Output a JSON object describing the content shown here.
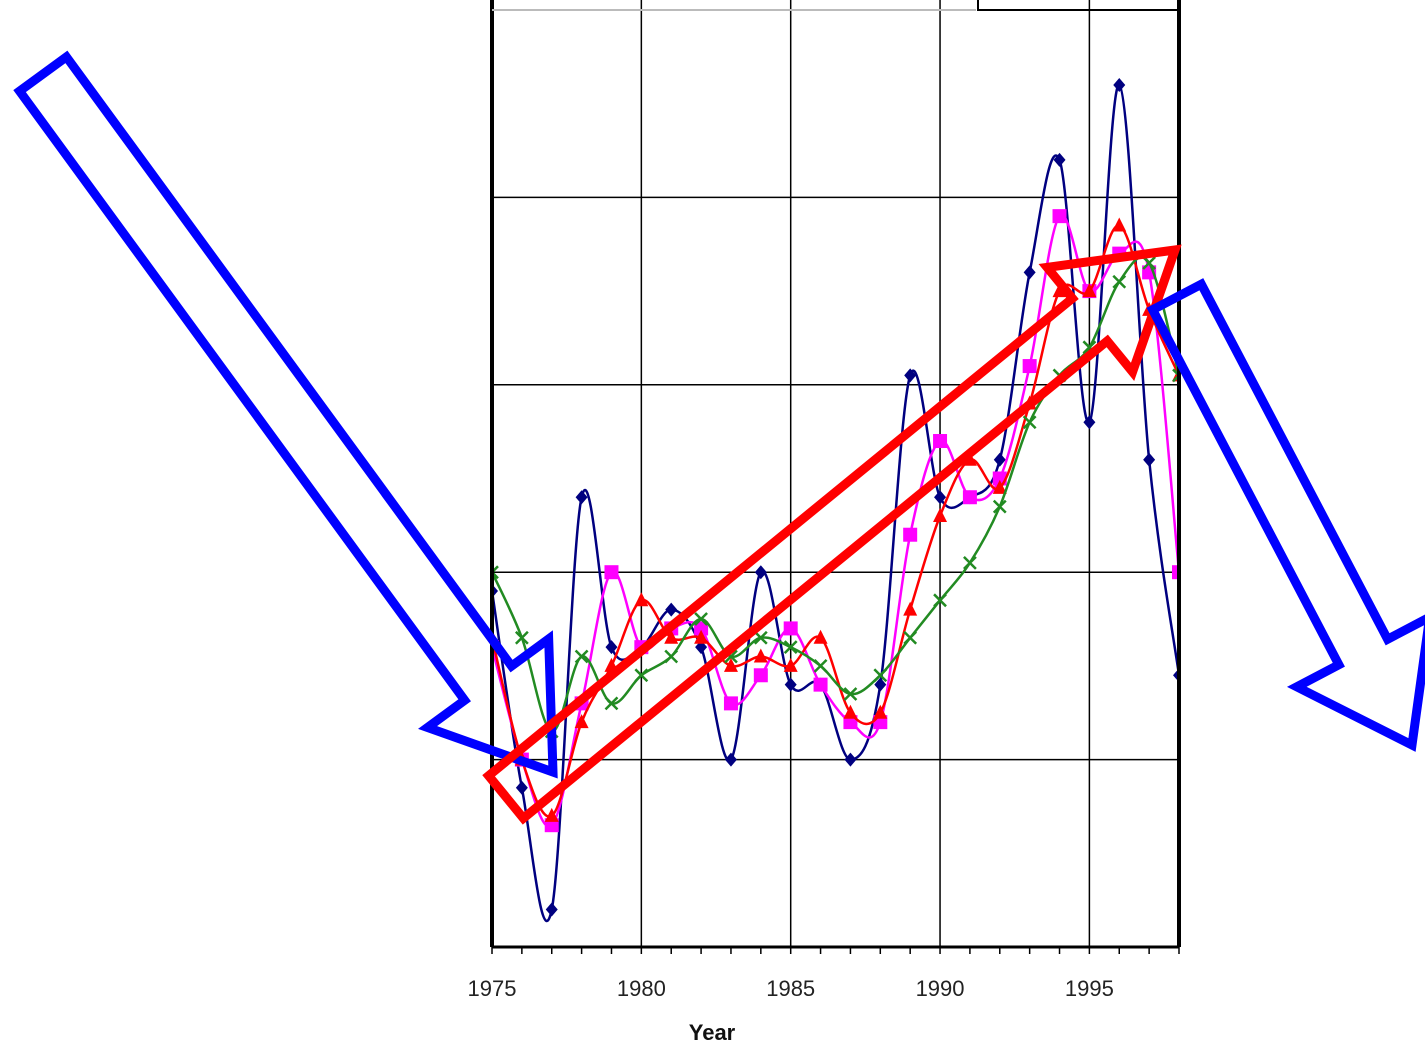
{
  "chart_data": {
    "type": "line",
    "title": "",
    "xlabel": "Year",
    "ylabel": "",
    "xlim": [
      1975,
      1998
    ],
    "ylim": [
      0,
      5
    ],
    "x_ticks": [
      1975,
      1980,
      1985,
      1990,
      1995
    ],
    "x_tick_labels": [
      "1975",
      "1980",
      "1985",
      "1990",
      "1995"
    ],
    "grid": true,
    "series": [
      {
        "color": "#000080",
        "marker": "diamond",
        "x": [
          1975,
          1976,
          1977,
          1978,
          1979,
          1980,
          1981,
          1982,
          1983,
          1984,
          1985,
          1986,
          1987,
          1988,
          1989,
          1990,
          1991,
          1992,
          1993,
          1994,
          1995,
          1996,
          1997,
          1998
        ],
        "y": [
          1.9,
          0.85,
          0.2,
          2.4,
          1.6,
          1.6,
          1.8,
          1.6,
          1.0,
          2.0,
          1.4,
          1.4,
          1.0,
          1.4,
          3.05,
          2.4,
          2.4,
          2.6,
          3.6,
          4.2,
          2.8,
          4.6,
          2.6,
          1.45
        ]
      },
      {
        "color": "#FF00FF",
        "marker": "square",
        "x": [
          1975,
          1976,
          1977,
          1978,
          1979,
          1980,
          1981,
          1982,
          1983,
          1984,
          1985,
          1986,
          1987,
          1988,
          1989,
          1990,
          1991,
          1992,
          1993,
          1994,
          1995,
          1996,
          1997,
          1998
        ],
        "y": [
          1.6,
          1.0,
          0.65,
          1.3,
          2.0,
          1.6,
          1.7,
          1.7,
          1.3,
          1.45,
          1.7,
          1.4,
          1.2,
          1.2,
          2.2,
          2.7,
          2.4,
          2.5,
          3.1,
          3.9,
          3.5,
          3.7,
          3.6,
          2.0
        ]
      },
      {
        "color": "#FF0000",
        "marker": "triangle",
        "x": [
          1975,
          1976,
          1977,
          1978,
          1979,
          1980,
          1981,
          1982,
          1983,
          1984,
          1985,
          1986,
          1987,
          1988,
          1989,
          1990,
          1991,
          1992,
          1993,
          1994,
          1995,
          1996,
          1997,
          1998
        ],
        "y": [
          1.65,
          1.0,
          0.7,
          1.2,
          1.5,
          1.85,
          1.65,
          1.65,
          1.5,
          1.55,
          1.5,
          1.65,
          1.25,
          1.25,
          1.8,
          2.3,
          2.6,
          2.45,
          2.9,
          3.5,
          3.5,
          3.85,
          3.4,
          3.05
        ]
      },
      {
        "color": "#228B22",
        "marker": "x",
        "x": [
          1975,
          1976,
          1977,
          1978,
          1979,
          1980,
          1981,
          1982,
          1983,
          1984,
          1985,
          1986,
          1987,
          1988,
          1989,
          1990,
          1991,
          1992,
          1993,
          1994,
          1995,
          1996,
          1997,
          1998
        ],
        "y": [
          2.0,
          1.65,
          1.15,
          1.55,
          1.3,
          1.45,
          1.55,
          1.75,
          1.55,
          1.65,
          1.6,
          1.5,
          1.35,
          1.45,
          1.65,
          1.85,
          2.05,
          2.35,
          2.8,
          3.05,
          3.2,
          3.55,
          3.65,
          3.05
        ]
      }
    ],
    "annotations": [
      {
        "type": "arrow",
        "color": "#0000FF",
        "direction": "down-right",
        "style": "hollow",
        "position": "left of plot"
      },
      {
        "type": "arrow",
        "color": "#FF0000",
        "direction": "up-right",
        "style": "hollow",
        "position": "across plot"
      },
      {
        "type": "arrow",
        "color": "#0000FF",
        "direction": "down-right",
        "style": "hollow",
        "position": "right of plot"
      }
    ]
  }
}
